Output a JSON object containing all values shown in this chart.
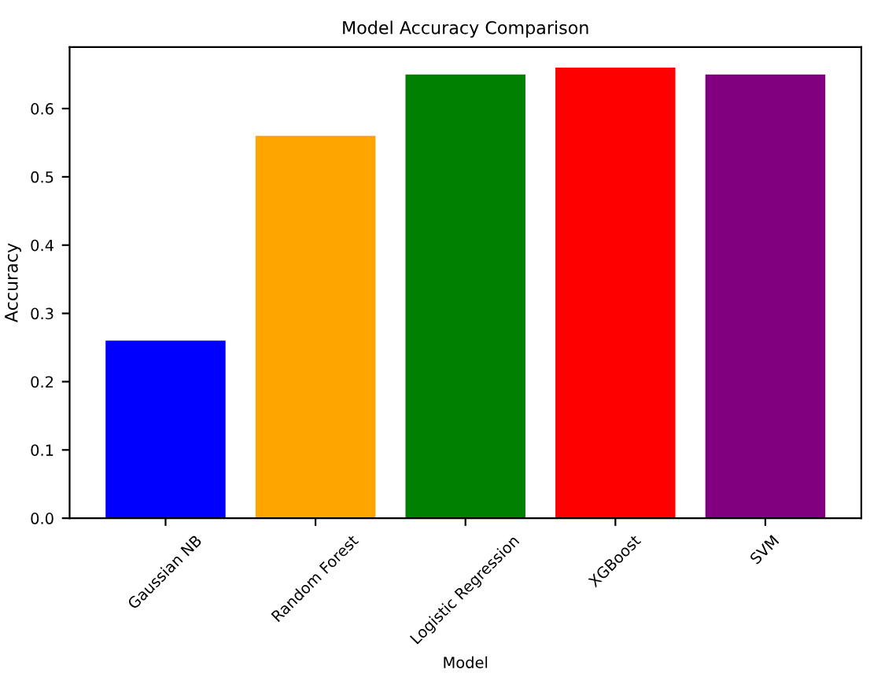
{
  "chart_data": {
    "type": "bar",
    "title": "Model Accuracy Comparison",
    "xlabel": "Model",
    "ylabel": "Accuracy",
    "categories": [
      "Gaussian NB",
      "Random Forest",
      "Logistic Regression",
      "XGBoost",
      "SVM"
    ],
    "values": [
      0.26,
      0.56,
      0.65,
      0.66,
      0.65
    ],
    "colors": [
      "#0000ff",
      "#ffa500",
      "#008000",
      "#ff0000",
      "#800080"
    ],
    "ylim": [
      0,
      0.69
    ],
    "yticks": [
      {
        "value": 0,
        "label": "0.0"
      },
      0.1,
      0.2,
      0.3,
      0.4,
      0.5,
      0.6
    ],
    "grid": false,
    "legend": false
  }
}
